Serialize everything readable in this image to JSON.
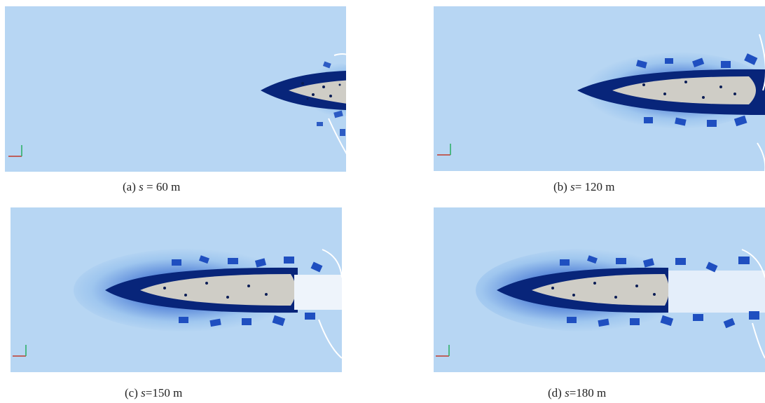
{
  "colors": {
    "water": "#b7d6f3",
    "water_dark": "#062a8a",
    "hull": "#cfcdc6",
    "ice": "#3d7fe0",
    "axis_x": "#c0392b",
    "axis_y": "#27ae60"
  },
  "panels": [
    {
      "id": "a",
      "prefix": "(",
      "label": "a",
      "close": ") ",
      "var": "s",
      "value": " = 60 m"
    },
    {
      "id": "b",
      "prefix": "(",
      "label": "b",
      "close": ") ",
      "var": "s",
      "value": "= 120 m"
    },
    {
      "id": "c",
      "prefix": "(",
      "label": "c",
      "close": ") ",
      "var": "s",
      "value": "=150 m"
    },
    {
      "id": "d",
      "prefix": "(",
      "label": "d",
      "close": ") ",
      "var": "s",
      "value": "=180 m"
    }
  ]
}
